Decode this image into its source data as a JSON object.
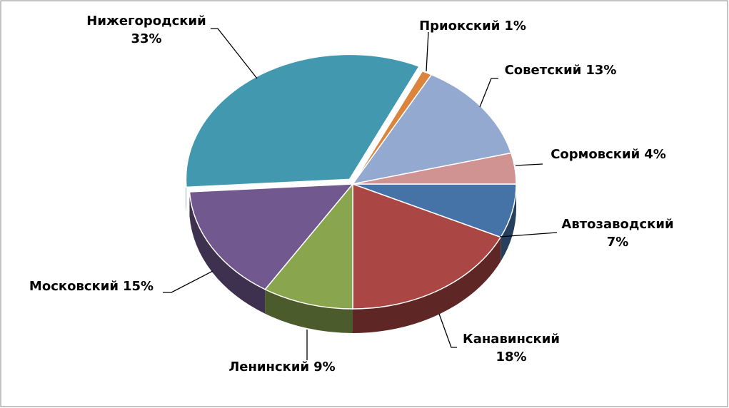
{
  "chart_data": {
    "type": "pie",
    "categories": [
      "Автозаводский",
      "Канавинский",
      "Ленинский",
      "Московский",
      "Нижегородский",
      "Приокский",
      "Советский",
      "Сормовский"
    ],
    "values": [
      7,
      18,
      9,
      15,
      33,
      1,
      13,
      4
    ],
    "value_labels": [
      "7%",
      "18%",
      "9%",
      "15%",
      "33%",
      "1%",
      "13%",
      "4%"
    ],
    "colors": [
      "#4572a7",
      "#aa4643",
      "#89a54e",
      "#71588f",
      "#4198af",
      "#db843d",
      "#93a9cf",
      "#d19392"
    ]
  }
}
